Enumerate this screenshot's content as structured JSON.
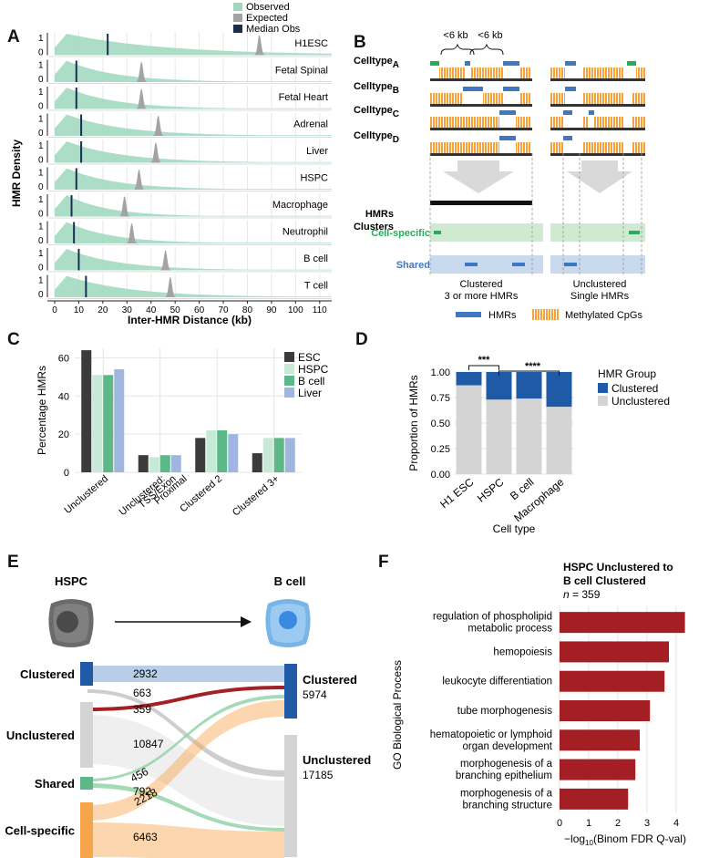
{
  "panels": {
    "a": "A",
    "b": "B",
    "c": "C",
    "d": "D",
    "e": "E",
    "f": "F"
  },
  "colors": {
    "observed": "#9ed8bd",
    "expected": "#a3a3a3",
    "median": "#1b2e52",
    "hmr_blue": "#3f78c2",
    "cpg_orange": "#f6a23c",
    "green_mark": "#27ad5a",
    "cell_specific_bg": "#cfe9d3",
    "shared_bg": "#c9d9ee",
    "esc": "#3b3b3b",
    "hspc": "#c7ead8",
    "bcell": "#5db888",
    "liver": "#9fb7e0",
    "clustered_navy": "#1f5aa6",
    "unclustered_grey": "#d4d4d4",
    "flow_red": "#a32125",
    "flow_green": "#8fd1a4",
    "flow_orange": "#f6a54b",
    "go_bar": "#a41f24"
  },
  "panel_a": {
    "legend": [
      "Observed",
      "Expected",
      "Median Obs"
    ],
    "ylabel": "HMR Density",
    "xlabel": "Inter-HMR Distance (kb)",
    "tick_y_top": "1",
    "tick_y_bottom": "0",
    "xticks": [
      "0",
      "10",
      "20",
      "30",
      "40",
      "50",
      "60",
      "70",
      "80",
      "90",
      "100",
      "110"
    ],
    "rows": [
      {
        "name": "H1ESC",
        "median": 22,
        "expected": 85
      },
      {
        "name": "Fetal Spinal",
        "median": 9,
        "expected": 36
      },
      {
        "name": "Fetal Heart",
        "median": 9,
        "expected": 36
      },
      {
        "name": "Adrenal",
        "median": 11,
        "expected": 43
      },
      {
        "name": "Liver",
        "median": 11,
        "expected": 42
      },
      {
        "name": "HSPC",
        "median": 9,
        "expected": 35
      },
      {
        "name": "Macrophage",
        "median": 7,
        "expected": 29
      },
      {
        "name": "Neutrophil",
        "median": 8,
        "expected": 32
      },
      {
        "name": "B cell",
        "median": 10,
        "expected": 46
      },
      {
        "name": "T cell",
        "median": 13,
        "expected": 48
      }
    ]
  },
  "panel_b": {
    "celltype_word": "Celltype",
    "celltype_subs": [
      "A",
      "B",
      "C",
      "D"
    ],
    "gap_label_1": "<6 kb",
    "gap_label_2": "<6 kb",
    "hmr_clusters_line1": "HMRs",
    "hmr_clusters_line2": "Clusters",
    "cell_specific": "Cell-specific",
    "shared": "Shared",
    "clustered_l1": "Clustered",
    "clustered_l2": "3 or more HMRs",
    "unclustered_l1": "Unclustered",
    "unclustered_l2": "Single HMRs",
    "legend_hmrs": "HMRs",
    "legend_cpg": "Methylated CpGs"
  },
  "chart_data": [
    {
      "type": "bar",
      "id": "C",
      "title": "",
      "ylabel": "Percentage HMRs",
      "xlabel": "",
      "ylim": [
        0,
        65
      ],
      "yticks": [
        "0",
        "20",
        "40",
        "60"
      ],
      "categories": [
        "Unclustered",
        "Unclustered: TSS/Exon Proximal",
        "Clustered 2",
        "Clustered 3+"
      ],
      "category_lines": [
        [
          "Unclustered"
        ],
        [
          "Unclustered:",
          "TSS/Exon",
          "Proximal"
        ],
        [
          "Clustered 2"
        ],
        [
          "Clustered 3+"
        ]
      ],
      "series": [
        {
          "name": "ESC",
          "values": [
            64,
            9,
            18,
            10
          ]
        },
        {
          "name": "HSPC",
          "values": [
            51,
            8,
            22,
            18
          ]
        },
        {
          "name": "B cell",
          "values": [
            51,
            9,
            22,
            18
          ]
        },
        {
          "name": "Liver",
          "values": [
            54,
            9,
            20,
            18
          ]
        }
      ]
    },
    {
      "type": "bar",
      "id": "D",
      "stacked": true,
      "xlabel": "Cell type",
      "ylabel": "Proportion of HMRs",
      "ylim": [
        0,
        1
      ],
      "yticks": [
        "0.00",
        "0.25",
        "0.50",
        "0.75",
        "1.00"
      ],
      "legend_title": "HMR Group",
      "categories": [
        "H1 ESC",
        "HSPC",
        "B cell",
        "Macrophage"
      ],
      "series": [
        {
          "name": "Clustered",
          "values": [
            0.13,
            0.27,
            0.26,
            0.34
          ]
        },
        {
          "name": "Unclustered",
          "values": [
            0.87,
            0.73,
            0.74,
            0.66
          ]
        }
      ],
      "sig_labels": [
        "***",
        "****"
      ]
    },
    {
      "type": "bar",
      "id": "F",
      "orientation": "horizontal",
      "title_line1": "HSPC Unclustered to",
      "title_line2": "B cell Clustered",
      "n_label": "n",
      "n_value": "= 359",
      "ylabel": "GO Biological Process",
      "xlabel_prefix": "−log",
      "xlabel_sub": "10",
      "xlabel_suffix": "(Binom FDR Q-val)",
      "xlim": [
        0,
        4.5
      ],
      "xticks": [
        "0",
        "1",
        "2",
        "3",
        "4"
      ],
      "categories": [
        [
          "regulation of phospholipid",
          "metabolic process"
        ],
        [
          "hemopoiesis"
        ],
        [
          "leukocyte differentiation"
        ],
        [
          "tube morphogenesis"
        ],
        [
          "hematopoietic or lymphoid",
          "organ development"
        ],
        [
          "morphogenesis of a",
          "branching epithelium"
        ],
        [
          "morphogenesis of a",
          "branching structure"
        ]
      ],
      "values": [
        4.3,
        3.75,
        3.6,
        3.1,
        2.75,
        2.6,
        2.35
      ]
    }
  ],
  "panel_e": {
    "hspc": "HSPC",
    "bcell": "B cell",
    "left": [
      "Clustered",
      "Unclustered",
      "Shared",
      "Cell-specific"
    ],
    "right_clustered": "Clustered",
    "right_clustered_n": "5974",
    "right_unclustered": "Unclustered",
    "right_unclustered_n": "17185",
    "flows": [
      "2932",
      "663",
      "359",
      "10847",
      "456",
      "792",
      "2218",
      "6463"
    ]
  }
}
